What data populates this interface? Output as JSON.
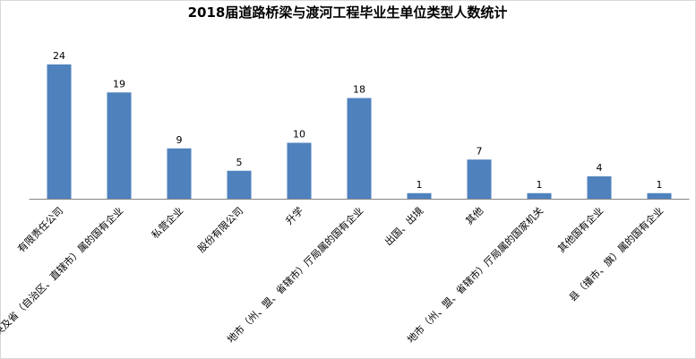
{
  "chart_data": {
    "type": "bar",
    "title": "2018届道路桥梁与渡河工程毕业生单位类型人数统计",
    "categories": [
      "有限责任公司",
      "中央及省（自治区、直辖市）属的国有企业",
      "私营企业",
      "股份有限公司",
      "升学",
      "地市（州、盟、省辖市）厅局属的国有企业",
      "出国、出境",
      "其他",
      "地市（州、盟、省辖市）厅局属的国家机关",
      "其他国有企业",
      "县（播市、旗）属的国有企业"
    ],
    "values": [
      24,
      19,
      9,
      5,
      10,
      18,
      1,
      7,
      1,
      4,
      1
    ],
    "ylim": [
      0,
      24
    ],
    "bar_color": "#4f81bd",
    "axis_color": "#868686",
    "grid": false,
    "legend": "none"
  }
}
